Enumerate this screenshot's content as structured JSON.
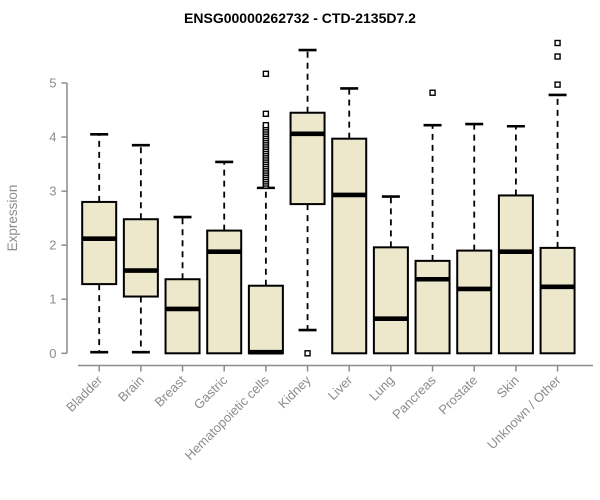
{
  "title": "ENSG00000262732 - CTD-2135D7.2",
  "chart_data": {
    "type": "boxplot",
    "title": "ENSG00000262732 - CTD-2135D7.2",
    "ylabel": "Expression",
    "xlabel": "",
    "ylim": [
      0,
      5
    ],
    "yticks": [
      0,
      1,
      2,
      3,
      4,
      5
    ],
    "grid": false,
    "legend": false,
    "categories": [
      "Bladder",
      "Brain",
      "Breast",
      "Gastric",
      "Hematopoietic cells",
      "Kidney",
      "Liver",
      "Lung",
      "Pancreas",
      "Prostate",
      "Skin",
      "Unknown / Other"
    ],
    "boxes": [
      {
        "category": "Bladder",
        "low": 0.02,
        "q1": 1.28,
        "median": 2.12,
        "q3": 2.8,
        "high": 4.05,
        "outliers": []
      },
      {
        "category": "Brain",
        "low": 0.02,
        "q1": 1.05,
        "median": 1.53,
        "q3": 2.48,
        "high": 3.85,
        "outliers": []
      },
      {
        "category": "Breast",
        "low": 0.0,
        "q1": 0.0,
        "median": 0.82,
        "q3": 1.37,
        "high": 2.52,
        "outliers": []
      },
      {
        "category": "Gastric",
        "low": 0.0,
        "q1": 0.0,
        "median": 1.88,
        "q3": 2.27,
        "high": 3.54,
        "outliers": []
      },
      {
        "category": "Hematopoietic cells",
        "low": 0.0,
        "q1": 0.0,
        "median": 0.02,
        "q3": 1.25,
        "high": 3.06,
        "outliers": [
          3.1,
          3.14,
          3.18,
          3.22,
          3.26,
          3.3,
          3.34,
          3.38,
          3.42,
          3.46,
          3.5,
          3.54,
          3.58,
          3.62,
          3.66,
          3.7,
          3.74,
          3.78,
          3.82,
          3.86,
          3.9,
          3.94,
          3.98,
          4.02,
          4.06,
          4.1,
          4.14,
          4.18,
          4.22,
          4.43,
          5.17
        ]
      },
      {
        "category": "Kidney",
        "low": 0.43,
        "q1": 2.76,
        "median": 4.06,
        "q3": 4.45,
        "high": 5.61,
        "outliers": [
          0.0
        ]
      },
      {
        "category": "Liver",
        "low": 0.0,
        "q1": 0.0,
        "median": 2.93,
        "q3": 3.97,
        "high": 4.9,
        "outliers": []
      },
      {
        "category": "Lung",
        "low": 0.0,
        "q1": 0.0,
        "median": 0.64,
        "q3": 1.96,
        "high": 2.9,
        "outliers": []
      },
      {
        "category": "Pancreas",
        "low": 0.0,
        "q1": 0.0,
        "median": 1.37,
        "q3": 1.71,
        "high": 4.22,
        "outliers": [
          4.82
        ]
      },
      {
        "category": "Prostate",
        "low": 0.0,
        "q1": 0.0,
        "median": 1.19,
        "q3": 1.9,
        "high": 4.24,
        "outliers": []
      },
      {
        "category": "Skin",
        "low": 0.0,
        "q1": 0.0,
        "median": 1.88,
        "q3": 2.92,
        "high": 4.2,
        "outliers": []
      },
      {
        "category": "Unknown / Other",
        "low": 0.0,
        "q1": 0.0,
        "median": 1.23,
        "q3": 1.95,
        "high": 4.78,
        "outliers": [
          4.97,
          5.49,
          5.74
        ]
      }
    ],
    "colors": {
      "box_fill": "#ede7cb",
      "box_border": "#000000",
      "median": "#000000",
      "whisker": "#000000",
      "axis": "#8c8c8c",
      "tick_text": "#8c8c8c",
      "title_text": "#000000",
      "background": "#ffffff"
    }
  }
}
